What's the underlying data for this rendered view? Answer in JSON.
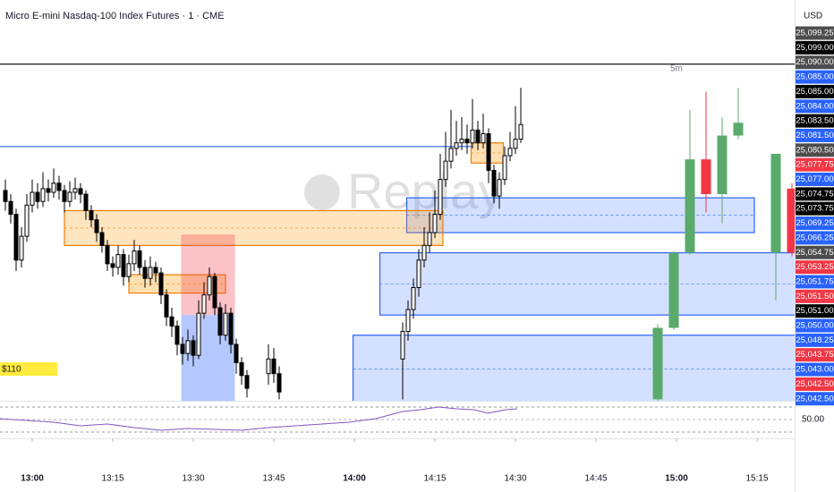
{
  "chart_data": {
    "type": "candlestick",
    "title": "Micro E-mini Nasdaq-100 Index Futures · 1 · CME",
    "currency": "USD",
    "watermark": "Replay",
    "interval_label": "5m",
    "pnl_label": "$110",
    "indicator_label": "50.00",
    "xlim": [
      774,
      922
    ],
    "xticks": [
      {
        "value": 780,
        "label": "13:00"
      },
      {
        "value": 795,
        "label": "13:15"
      },
      {
        "value": 810,
        "label": "13:30"
      },
      {
        "value": 825,
        "label": "13:45"
      },
      {
        "value": 840,
        "label": "14:00"
      },
      {
        "value": 855,
        "label": "14:15"
      },
      {
        "value": 870,
        "label": "14:30"
      },
      {
        "value": 885,
        "label": "14:45"
      },
      {
        "value": 900,
        "label": "15:00"
      },
      {
        "value": 915,
        "label": "15:15"
      }
    ],
    "ylim": [
      25042.3,
      25097
    ],
    "series": [
      {
        "style": "hollow",
        "up_color": "#ffffff",
        "down_color": "#000000",
        "outline": "#000000",
        "x": [
          775,
          776,
          777,
          778,
          779,
          780,
          781,
          782,
          783,
          784,
          785,
          786,
          787,
          788,
          789,
          790,
          791,
          792,
          793,
          794,
          795,
          796,
          797,
          798,
          799,
          800,
          801,
          802,
          803,
          804,
          805,
          806,
          807,
          808,
          809,
          810,
          811,
          812,
          813,
          814,
          815,
          816,
          817,
          818,
          819,
          820,
          824,
          825,
          826,
          849,
          850,
          851,
          852,
          853,
          854,
          855,
          856,
          857,
          858,
          859,
          860,
          861,
          862,
          863,
          864,
          865,
          866,
          867,
          868,
          869,
          870,
          871
        ],
        "open": [
          25071,
          25069.5,
          25067.75,
          25061.5,
          25064.75,
          25069,
          25070.75,
          25069.5,
          25071.25,
          25070.75,
          25072,
          25071,
          25069.5,
          25070.75,
          25071.25,
          25070.5,
          25068.25,
          25067,
          25065.25,
          25063.5,
          25061,
          25060.5,
          25062.25,
          25059.25,
          25061,
          25062.75,
          25060.5,
          25059,
          25060.5,
          25059.75,
          25056.75,
          25053.75,
          25052.5,
          25050,
          25048.75,
          25050.5,
          25048.5,
          25054.25,
          25056.75,
          25059.25,
          25055,
          25051.25,
          25054.25,
          25050,
          25047.5,
          25045.75,
          25046,
          25048,
          25046,
          25048,
          25051.75,
          25054.75,
          25057.75,
          25061.5,
          25063.5,
          25065.25,
          25067.75,
          25072.5,
          25075,
          25076.75,
          25077.5,
          25078,
          25077.5,
          25079.25,
          25077.5,
          25078.75,
          25073.75,
          25070.25,
          25072.5,
          25075.75,
          25076.75,
          25078
        ],
        "high": [
          25072.5,
          25070.5,
          25068.5,
          25066,
          25070.5,
          25072.5,
          25072,
          25073.5,
          25072.5,
          25074,
          25073,
          25071.75,
          25072.25,
          25072.75,
          25072,
          25071,
          25069,
          25067.75,
          25066,
          25064.25,
          25062,
          25063.5,
          25063,
          25062.25,
          25064.25,
          25063.5,
          25061.5,
          25062,
          25061.25,
          25060.5,
          25057.5,
          25055,
          25053.25,
          25051,
          25052,
          25051.25,
          25056,
          25058.5,
          25060.5,
          25059.75,
          25055.75,
          25055.5,
          25055,
          25050.75,
          25048.25,
          25046.5,
          25050,
          25049.5,
          25047,
          25053,
          25056,
          25059,
          25063,
          25066,
          25068,
          25071,
          25076,
          25079,
          25082,
          25080.5,
          25081,
          25080,
          25083.5,
          25080.5,
          25081.5,
          25079.5,
          25074.5,
          25073.5,
          25077,
          25079,
          25082.5,
          25085
        ],
        "low": [
          25068.25,
          25066.5,
          25060,
          25060.5,
          25064,
          25068,
          25068.5,
          25068.75,
          25069.5,
          25070,
          25069.75,
          25068,
          25068.75,
          25069.75,
          25069.25,
          25067,
          25066,
          25064,
          25062.5,
          25060,
          25059.25,
          25059.5,
          25058,
          25058.5,
          25060,
          25059.5,
          25057.75,
          25058,
          25058.5,
          25055.5,
          25052.5,
          25051,
          25048.5,
          25047.25,
          25047.75,
          25047,
          25048,
          25053.5,
          25056,
          25054,
          25050,
          25050.5,
          25048.75,
          25046,
          25044.5,
          25042.75,
          25044.5,
          25044.75,
          25042.5,
          25042.5,
          25050.5,
          25053.5,
          25056.5,
          25060.5,
          25062.5,
          25064.5,
          25067,
          25071.5,
          25074,
          25075.75,
          25076.5,
          25076,
          25076.75,
          25076.5,
          25076.75,
          25072,
          25069.25,
          25068.5,
          25071.75,
          25075,
          25076,
          25077.5
        ],
        "close": [
          25069.5,
          25067.75,
          25061.5,
          25064.75,
          25069,
          25070.75,
          25069.5,
          25071.25,
          25070.75,
          25072,
          25071,
          25069.5,
          25070.75,
          25071.25,
          25070.5,
          25068.25,
          25067,
          25065.25,
          25063.5,
          25061,
          25060.5,
          25062.25,
          25059.25,
          25061,
          25062.75,
          25060.5,
          25059,
          25060.5,
          25059.75,
          25056.75,
          25053.75,
          25052.5,
          25050,
          25048.75,
          25050.5,
          25048.5,
          25054.25,
          25056.75,
          25059.25,
          25055,
          25051.25,
          25054.25,
          25050,
          25047.5,
          25045.75,
          25044,
          25048,
          25046,
          25043.5,
          25051.75,
          25054.75,
          25057.75,
          25061.5,
          25063.5,
          25065.25,
          25067.75,
          25072.5,
          25075,
          25076.75,
          25077.5,
          25078,
          25077.5,
          25079.25,
          25077.5,
          25078.75,
          25073.75,
          25070.25,
          25072.5,
          25075.75,
          25076.75,
          25078,
          25080
        ]
      },
      {
        "style": "filled",
        "up_color": "#5aaa6c",
        "down_color": "#f23645",
        "outline": "none",
        "x": [
          896.5,
          899.5,
          902.5,
          905.5,
          908.5,
          911.5,
          918.5,
          921.5
        ],
        "open": [
          25042.5,
          25052.25,
          25062.5,
          25075.25,
          25070.5,
          25078.5,
          25062.5,
          25071.25
        ],
        "high": [
          25052.75,
          25062.75,
          25082,
          25084.5,
          25081,
          25085,
          25076,
          25072
        ],
        "low": [
          25042.25,
          25052,
          25062.25,
          25068,
          25066.5,
          25078,
          25056,
          25062
        ],
        "close": [
          25052.25,
          25062.5,
          25075.25,
          25070.5,
          25078.5,
          25080.25,
          25076,
          25062.5
        ]
      }
    ],
    "zones": [
      {
        "x": [
          849.75,
          914.5
        ],
        "y": [
          25065.25,
          25070
        ],
        "fill": "rgba(41,98,255,0.2)",
        "stroke": "#2962ff"
      },
      {
        "x": [
          844.75,
          923
        ],
        "y": [
          25054,
          25062.5
        ],
        "fill": "rgba(41,98,255,0.2)",
        "stroke": "#2962ff"
      },
      {
        "x": [
          839.75,
          923
        ],
        "y": [
          25042,
          25051.25
        ],
        "fill": "rgba(41,98,255,0.2)",
        "stroke": "#2962ff"
      },
      {
        "x": [
          786,
          856.5
        ],
        "y": [
          25063.5,
          25068.25
        ],
        "fill": "rgba(255,152,0,0.25)",
        "stroke": "#f57c00"
      },
      {
        "x": [
          798,
          816
        ],
        "y": [
          25057,
          25059.5
        ],
        "fill": "rgba(255,152,0,0.3)",
        "stroke": "#f57c00"
      },
      {
        "x": [
          861.75,
          867.75
        ],
        "y": [
          25074.75,
          25077.5
        ],
        "fill": "rgba(255,152,0,0.3)",
        "stroke": "#f57c00"
      },
      {
        "x": [
          807.75,
          817.75
        ],
        "y": [
          25054,
          25065
        ],
        "fill": "rgba(242,54,69,0.3)",
        "stroke": "none"
      },
      {
        "x": [
          807.75,
          817.75
        ],
        "y": [
          25042,
          25054
        ],
        "fill": "rgba(41,98,255,0.35)",
        "stroke": "none"
      }
    ],
    "lines": [
      {
        "y": 25077,
        "x": [
          774,
          862
        ],
        "color": "#2962ff"
      },
      {
        "y": 25088.25,
        "x": [
          774,
          922
        ],
        "color": "#000000"
      }
    ],
    "price_labels": [
      {
        "label": "25,099.25",
        "color": "#4d4d4d"
      },
      {
        "label": "25,099.00",
        "color": "#000000"
      },
      {
        "label": "25,090.00",
        "color": "#4d4d4d"
      },
      {
        "label": "25,085.00",
        "color": "#2962ff"
      },
      {
        "label": "25,085.00",
        "color": "#000000"
      },
      {
        "label": "25,084.00",
        "color": "#2962ff"
      },
      {
        "label": "25,083.50",
        "color": "#000000"
      },
      {
        "label": "25,081.50",
        "color": "#2962ff"
      },
      {
        "label": "25,080.50",
        "color": "#4d4d4d"
      },
      {
        "label": "25,077.75",
        "color": "#f23645"
      },
      {
        "label": "25,077.00",
        "color": "#2962ff"
      },
      {
        "label": "25,074.75",
        "color": "#000000"
      },
      {
        "label": "25,073.75",
        "color": "#000000"
      },
      {
        "label": "25,069.25",
        "color": "#2962ff"
      },
      {
        "label": "25,066.25",
        "color": "#2962ff"
      },
      {
        "label": "25,054.75",
        "color": "#4d4d4d"
      },
      {
        "label": "25,053.25",
        "color": "#f23645"
      },
      {
        "label": "25,051.75",
        "color": "#2962ff"
      },
      {
        "label": "25,051.50",
        "color": "#f23645"
      },
      {
        "label": "25,051.00",
        "color": "#000000"
      },
      {
        "label": "25,050.00",
        "color": "#2962ff"
      },
      {
        "label": "25,048.25",
        "color": "#2962ff"
      },
      {
        "label": "25,043.75",
        "color": "#f23645"
      },
      {
        "label": "25,043.00",
        "color": "#2962ff"
      },
      {
        "label": "25,042.50",
        "color": "#f23645"
      },
      {
        "label": "25,042.50",
        "color": "#2962ff"
      }
    ]
  }
}
